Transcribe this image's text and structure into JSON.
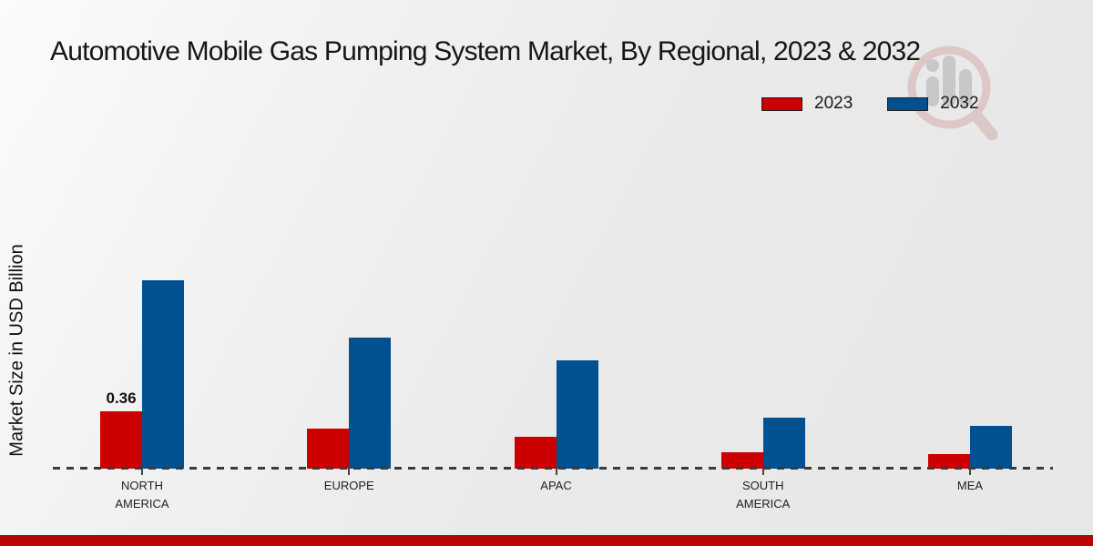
{
  "title": "Automotive Mobile Gas Pumping System Market, By Regional, 2023 & 2032",
  "watermark_icon": "magnifier-bar-chart-logo",
  "colors": {
    "series_2023": "#cc0000",
    "series_2032": "#01508f",
    "accent_strip": "#c00000",
    "baseline": "#3a3a3a",
    "watermark_ring": "#d2a7a7",
    "watermark_bars": "#a8a8a8"
  },
  "chart_data": {
    "type": "bar",
    "title": "Automotive Mobile Gas Pumping System Market, By Regional, 2023 & 2032",
    "xlabel": "",
    "ylabel": "Market Size in USD Billion",
    "categories": [
      "NORTH AMERICA",
      "EUROPE",
      "APAC",
      "SOUTH AMERICA",
      "MEA"
    ],
    "series": [
      {
        "name": "2023",
        "color": "#cc0000",
        "values": [
          0.36,
          0.25,
          0.2,
          0.1,
          0.09
        ],
        "value_labels": [
          "0.36",
          "",
          "",
          "",
          ""
        ]
      },
      {
        "name": "2032",
        "color": "#01508f",
        "values": [
          1.18,
          0.82,
          0.68,
          0.32,
          0.27
        ],
        "value_labels": [
          "",
          "",
          "",
          "",
          ""
        ]
      }
    ],
    "ylim": [
      0,
      1.6
    ],
    "grid": false,
    "legend_position": "top-right",
    "baseline_style": "dashed"
  }
}
